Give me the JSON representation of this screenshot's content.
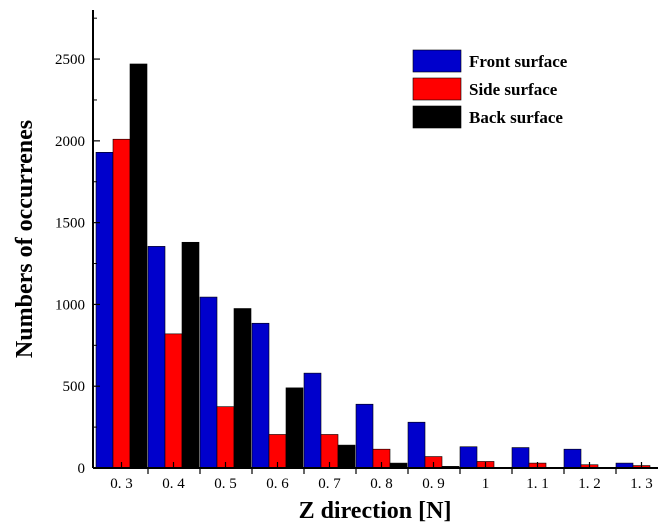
{
  "chart_data": {
    "type": "bar",
    "xlabel": "Z direction [N]",
    "ylabel": "Numbers of occurrenes",
    "categories": [
      "0. 3",
      "0. 4",
      "0. 5",
      "0. 6",
      "0. 7",
      "0. 8",
      "0. 9",
      "1",
      "1. 1",
      "1. 2",
      "1. 3"
    ],
    "yticks": [
      "0",
      "500",
      "1000",
      "1500",
      "2000",
      "2500"
    ],
    "ylim": [
      0,
      2800
    ],
    "grid": false,
    "legend_position": "top-right",
    "series": [
      {
        "name": "Front surface",
        "color": "#0000cc",
        "values": [
          1930,
          1355,
          1045,
          885,
          580,
          390,
          280,
          130,
          125,
          115,
          30
        ]
      },
      {
        "name": "Side surface",
        "color": "#ff0000",
        "values": [
          2010,
          820,
          375,
          205,
          205,
          115,
          70,
          40,
          30,
          20,
          15
        ]
      },
      {
        "name": "Back surface",
        "color": "#000000",
        "values": [
          2470,
          1380,
          975,
          490,
          140,
          30,
          10,
          0,
          0,
          0,
          0
        ]
      }
    ]
  }
}
